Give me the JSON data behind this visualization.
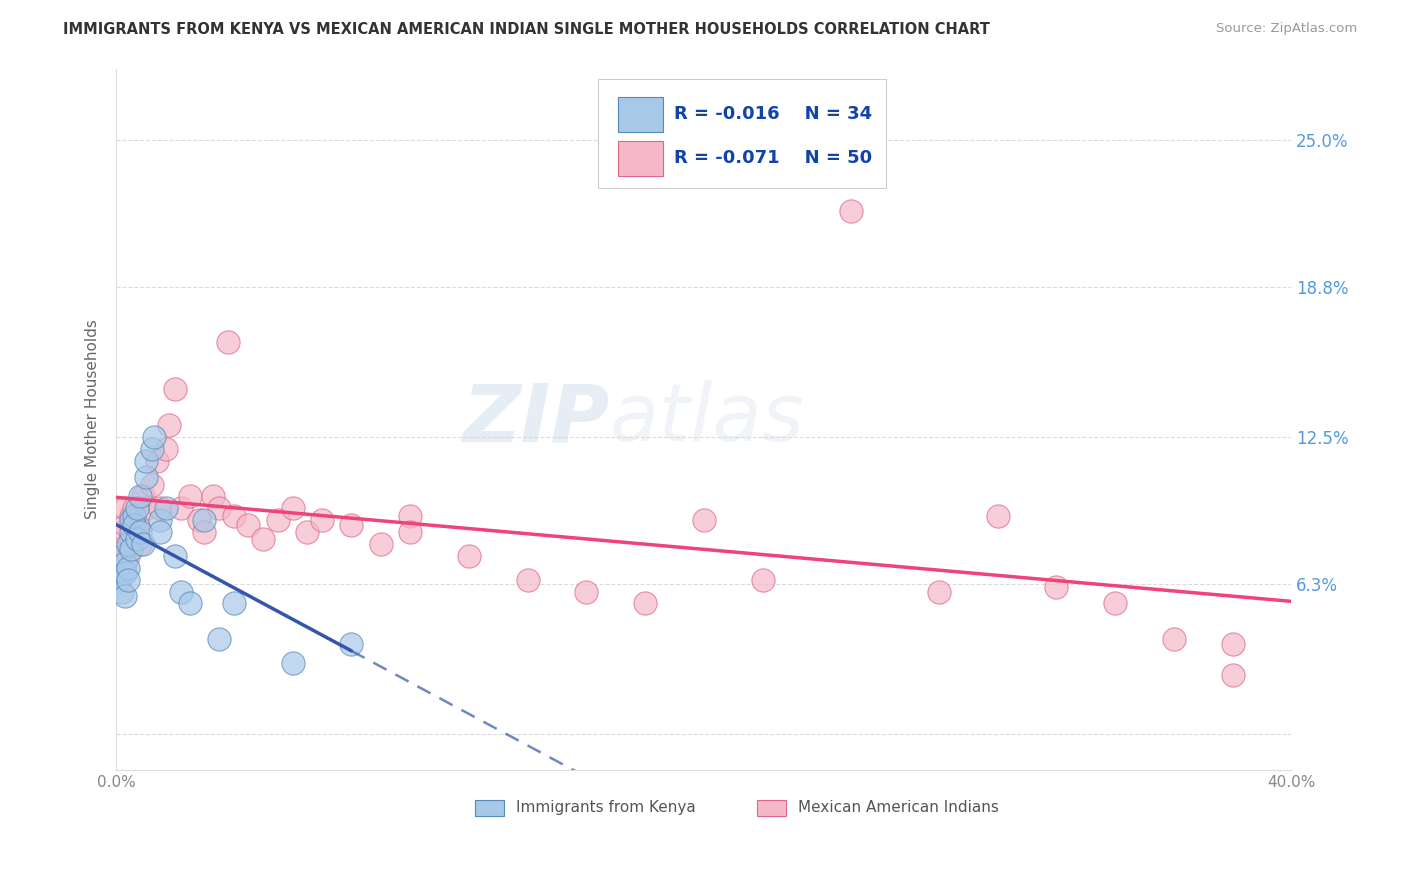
{
  "title": "IMMIGRANTS FROM KENYA VS MEXICAN AMERICAN INDIAN SINGLE MOTHER HOUSEHOLDS CORRELATION CHART",
  "source": "Source: ZipAtlas.com",
  "ylabel": "Single Mother Households",
  "xlim": [
    0.0,
    0.4
  ],
  "ylim": [
    -0.015,
    0.28
  ],
  "yticks": [
    0.0,
    0.063,
    0.125,
    0.188,
    0.25
  ],
  "ytick_labels": [
    "",
    "6.3%",
    "12.5%",
    "18.8%",
    "25.0%"
  ],
  "xticks": [
    0.0,
    0.1,
    0.2,
    0.3,
    0.4
  ],
  "xtick_labels": [
    "0.0%",
    "",
    "",
    "",
    "40.0%"
  ],
  "grid_color": "#cccccc",
  "background_color": "#ffffff",
  "watermark_zip": "ZIP",
  "watermark_atlas": "atlas",
  "series1_color": "#a8c8e8",
  "series2_color": "#f5b8c8",
  "series1_edge_color": "#5588bb",
  "series2_edge_color": "#dd6688",
  "series1_line_color": "#3355aa",
  "series2_line_color": "#ee4477",
  "R1": -0.016,
  "N1": 34,
  "R2": -0.071,
  "N2": 50,
  "kenya_x": [
    0.001,
    0.002,
    0.002,
    0.003,
    0.003,
    0.003,
    0.004,
    0.004,
    0.004,
    0.005,
    0.005,
    0.005,
    0.006,
    0.006,
    0.007,
    0.007,
    0.008,
    0.008,
    0.009,
    0.01,
    0.01,
    0.012,
    0.013,
    0.015,
    0.015,
    0.017,
    0.02,
    0.022,
    0.025,
    0.03,
    0.035,
    0.04,
    0.06,
    0.08
  ],
  "kenya_y": [
    0.065,
    0.075,
    0.06,
    0.072,
    0.068,
    0.058,
    0.08,
    0.07,
    0.065,
    0.085,
    0.09,
    0.078,
    0.092,
    0.088,
    0.095,
    0.082,
    0.1,
    0.085,
    0.08,
    0.108,
    0.115,
    0.12,
    0.125,
    0.09,
    0.085,
    0.095,
    0.075,
    0.06,
    0.055,
    0.09,
    0.04,
    0.055,
    0.03,
    0.038
  ],
  "mexican_x": [
    0.001,
    0.002,
    0.003,
    0.003,
    0.004,
    0.005,
    0.005,
    0.006,
    0.007,
    0.008,
    0.009,
    0.01,
    0.012,
    0.014,
    0.015,
    0.017,
    0.018,
    0.02,
    0.022,
    0.025,
    0.028,
    0.03,
    0.033,
    0.035,
    0.038,
    0.04,
    0.045,
    0.05,
    0.055,
    0.06,
    0.065,
    0.07,
    0.08,
    0.09,
    0.1,
    0.12,
    0.14,
    0.16,
    0.18,
    0.2,
    0.22,
    0.25,
    0.28,
    0.3,
    0.32,
    0.34,
    0.36,
    0.38,
    0.1,
    0.38
  ],
  "mexican_y": [
    0.078,
    0.085,
    0.088,
    0.095,
    0.075,
    0.092,
    0.082,
    0.095,
    0.088,
    0.08,
    0.1,
    0.095,
    0.105,
    0.115,
    0.095,
    0.12,
    0.13,
    0.145,
    0.095,
    0.1,
    0.09,
    0.085,
    0.1,
    0.095,
    0.165,
    0.092,
    0.088,
    0.082,
    0.09,
    0.095,
    0.085,
    0.09,
    0.088,
    0.08,
    0.092,
    0.075,
    0.065,
    0.06,
    0.055,
    0.09,
    0.065,
    0.22,
    0.06,
    0.092,
    0.062,
    0.055,
    0.04,
    0.025,
    0.085,
    0.038
  ]
}
